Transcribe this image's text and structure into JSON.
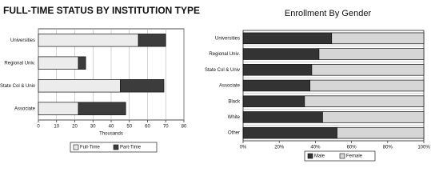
{
  "chart_data": [
    {
      "type": "bar",
      "orientation": "horizontal",
      "stacked": true,
      "grid": true,
      "legend": "bottom",
      "title": "FULL-TIME STATUS BY INSTITUTION TYPE",
      "xlabel": "Thousands",
      "categories": [
        "Universities",
        "Regional Univ.",
        "State Col & Univ",
        "Associate"
      ],
      "series": [
        {
          "name": "Full-Time",
          "color": "#ececec",
          "values": [
            55,
            22,
            45,
            22
          ]
        },
        {
          "name": "Part-Time",
          "color": "#3c3c3c",
          "values": [
            15,
            4,
            24,
            26
          ]
        }
      ],
      "xlim": [
        0,
        80
      ],
      "xticks": [
        0,
        10,
        20,
        30,
        40,
        50,
        60,
        70,
        80
      ]
    },
    {
      "type": "bar",
      "orientation": "horizontal",
      "stacked": true,
      "grid": false,
      "legend": "bottom",
      "title": "Enrollment By Gender",
      "categories": [
        "Universities",
        "Regional Univ.",
        "State Col & Univ",
        "Associate",
        "Black",
        "White",
        "Other"
      ],
      "series": [
        {
          "name": "Male",
          "color": "#333333",
          "values": [
            49,
            42,
            38,
            37,
            34,
            44,
            52
          ]
        },
        {
          "name": "Female",
          "color": "#d6d6d6",
          "values": [
            51,
            58,
            62,
            63,
            66,
            56,
            48
          ]
        }
      ],
      "xlim": [
        0,
        100
      ],
      "xticks": [
        {
          "value": 0,
          "label": "0%"
        },
        {
          "value": 20,
          "label": "20%"
        },
        {
          "value": 40,
          "label": "40%"
        },
        {
          "value": 60,
          "label": "60%"
        },
        {
          "value": 80,
          "label": "80%"
        },
        {
          "value": 100,
          "label": "100%"
        }
      ]
    }
  ]
}
